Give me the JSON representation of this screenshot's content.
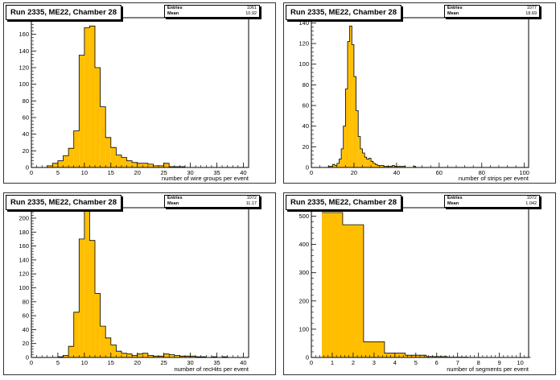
{
  "panels": [
    {
      "title": "Run 2335, ME22, Chamber 28",
      "stats": [
        {
          "name": "Entries",
          "value": "1061"
        },
        {
          "name": "Mean",
          "value": "10.92"
        }
      ]
    },
    {
      "title": "Run 2335, ME22, Chamber 28",
      "stats": [
        {
          "name": "Entries",
          "value": "1077"
        },
        {
          "name": "Mean",
          "value": "18.69"
        }
      ]
    },
    {
      "title": "Run 2335, ME22, Chamber 28",
      "stats": [
        {
          "name": "Entries",
          "value": "1072"
        },
        {
          "name": "Mean",
          "value": "11.17"
        }
      ]
    },
    {
      "title": "Run 2335, ME22, Chamber 28",
      "stats": [
        {
          "name": "Entries",
          "value": "1072"
        },
        {
          "name": "Mean",
          "value": "1.042"
        }
      ]
    }
  ],
  "colors": {
    "fill": "#ffbf00",
    "line": "#000000",
    "frame": "#000000"
  },
  "chart_data": [
    {
      "type": "bar",
      "title": "Run 2335, ME22, Chamber 28",
      "xlabel": "number of wire groups per event",
      "ylabel": "",
      "xlim": [
        0,
        41
      ],
      "ylim": [
        0,
        180
      ],
      "xticks": [
        0,
        5,
        10,
        15,
        20,
        25,
        30,
        35,
        40
      ],
      "yticks": [
        0,
        20,
        40,
        60,
        80,
        100,
        120,
        140,
        160,
        180
      ],
      "bin_start": 0,
      "bin_width": 1,
      "values": [
        0,
        0,
        0,
        2,
        5,
        8,
        14,
        23,
        44,
        135,
        168,
        170,
        120,
        73,
        36,
        24,
        15,
        12,
        8,
        6,
        5,
        5,
        4,
        2,
        2,
        5,
        1,
        1,
        1,
        0,
        0,
        0,
        0,
        0,
        0,
        0,
        0,
        0,
        0,
        0,
        0
      ]
    },
    {
      "type": "bar",
      "title": "Run 2335, ME22, Chamber 28",
      "xlabel": "number of strips per event",
      "ylabel": "",
      "xlim": [
        0,
        102
      ],
      "ylim": [
        0,
        145
      ],
      "xticks": [
        0,
        20,
        40,
        60,
        80,
        100
      ],
      "yticks": [
        0,
        20,
        40,
        60,
        80,
        100,
        120,
        140
      ],
      "bin_start": 0,
      "bin_width": 1,
      "values": [
        0,
        0,
        0,
        0,
        0,
        0,
        0,
        0,
        1,
        1,
        3,
        2,
        4,
        8,
        18,
        40,
        76,
        122,
        137,
        119,
        88,
        55,
        30,
        18,
        14,
        10,
        8,
        9,
        6,
        4,
        3,
        2,
        2,
        2,
        1,
        1,
        1,
        1,
        2,
        1,
        1,
        1,
        1,
        1,
        0,
        0,
        0,
        0,
        1,
        0,
        0,
        0,
        0,
        0,
        0,
        0,
        0,
        0,
        0,
        0,
        0,
        0,
        0,
        0,
        0,
        0,
        0,
        0,
        0,
        0,
        0,
        0,
        0,
        0,
        0,
        0,
        0,
        0,
        0,
        0,
        0,
        0,
        0,
        0,
        0,
        0,
        0,
        0,
        0,
        0,
        0,
        0,
        0,
        0,
        0,
        0,
        0,
        0,
        0,
        0,
        0,
        0
      ]
    },
    {
      "type": "bar",
      "title": "Run 2335, ME22, Chamber 28",
      "xlabel": "number of recHits per event",
      "ylabel": "",
      "xlim": [
        0,
        41
      ],
      "ylim": [
        0,
        215
      ],
      "xticks": [
        0,
        5,
        10,
        15,
        20,
        25,
        30,
        35,
        40
      ],
      "yticks": [
        0,
        20,
        40,
        60,
        80,
        100,
        120,
        140,
        160,
        180,
        200
      ],
      "bin_start": 0,
      "bin_width": 1,
      "values": [
        0,
        0,
        0,
        0,
        0,
        1,
        3,
        16,
        65,
        170,
        210,
        168,
        92,
        45,
        28,
        18,
        9,
        6,
        5,
        3,
        5,
        6,
        3,
        2,
        2,
        5,
        4,
        3,
        2,
        2,
        2,
        1,
        1,
        0,
        1,
        0,
        1,
        0,
        0,
        0,
        0
      ]
    },
    {
      "type": "bar",
      "title": "Run 2335, ME22, Chamber 28",
      "xlabel": "number of segments per event",
      "ylabel": "",
      "xlim": [
        0,
        10.4
      ],
      "ylim": [
        0,
        530
      ],
      "xticks": [
        0,
        1,
        2,
        3,
        4,
        5,
        6,
        7,
        8,
        9,
        10
      ],
      "yticks": [
        0,
        100,
        200,
        300,
        400,
        500
      ],
      "bin_start": 0.5,
      "bin_width": 1,
      "values": [
        513,
        470,
        55,
        15,
        8,
        3,
        1,
        0,
        0,
        0
      ]
    }
  ]
}
